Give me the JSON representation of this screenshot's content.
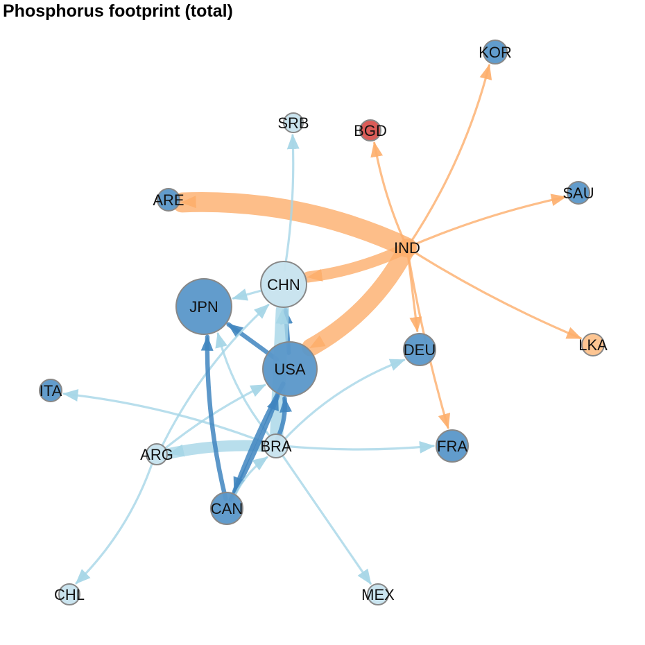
{
  "title": "Phosphorus footprint (total)",
  "colors": {
    "orange": "#fdae6b",
    "light_blue": "#a6d6e7",
    "mid_blue": "#3f85bf",
    "node_blue": "#5a97c9",
    "node_light": "#c7e3ee",
    "node_orange": "#fdc28c",
    "node_red": "#d9534f",
    "node_border": "#888888"
  },
  "nodes": [
    {
      "id": "KOR",
      "label": "KOR",
      "fill": "node_blue"
    },
    {
      "id": "SRB",
      "label": "SRB",
      "fill": "node_light"
    },
    {
      "id": "BGD",
      "label": "BGD",
      "fill": "node_red"
    },
    {
      "id": "SAU",
      "label": "SAU",
      "fill": "node_blue"
    },
    {
      "id": "ARE",
      "label": "ARE",
      "fill": "node_blue"
    },
    {
      "id": "IND",
      "label": "IND",
      "fill": "node_orange"
    },
    {
      "id": "CHN",
      "label": "CHN",
      "fill": "node_light"
    },
    {
      "id": "JPN",
      "label": "JPN",
      "fill": "node_blue"
    },
    {
      "id": "DEU",
      "label": "DEU",
      "fill": "node_blue"
    },
    {
      "id": "LKA",
      "label": "LKA",
      "fill": "node_orange"
    },
    {
      "id": "USA",
      "label": "USA",
      "fill": "node_blue"
    },
    {
      "id": "ITA",
      "label": "ITA",
      "fill": "node_blue"
    },
    {
      "id": "ARG",
      "label": "ARG",
      "fill": "node_light"
    },
    {
      "id": "BRA",
      "label": "BRA",
      "fill": "node_light"
    },
    {
      "id": "FRA",
      "label": "FRA",
      "fill": "node_blue"
    },
    {
      "id": "CAN",
      "label": "CAN",
      "fill": "node_blue"
    },
    {
      "id": "CHL",
      "label": "CHL",
      "fill": "node_light"
    },
    {
      "id": "MEX",
      "label": "MEX",
      "fill": "node_light"
    }
  ],
  "edges": [
    {
      "from": "IND",
      "to": "ARE",
      "weight": 9,
      "color": "orange"
    },
    {
      "from": "IND",
      "to": "USA",
      "weight": 8,
      "color": "orange"
    },
    {
      "from": "IND",
      "to": "CHN",
      "weight": 5,
      "color": "orange"
    },
    {
      "from": "IND",
      "to": "KOR",
      "weight": 1,
      "color": "orange"
    },
    {
      "from": "IND",
      "to": "BGD",
      "weight": 1,
      "color": "orange"
    },
    {
      "from": "IND",
      "to": "SAU",
      "weight": 1,
      "color": "orange"
    },
    {
      "from": "IND",
      "to": "LKA",
      "weight": 1,
      "color": "orange"
    },
    {
      "from": "IND",
      "to": "DEU",
      "weight": 1,
      "color": "orange"
    },
    {
      "from": "IND",
      "to": "FRA",
      "weight": 1,
      "color": "orange"
    },
    {
      "from": "CHN",
      "to": "SRB",
      "weight": 1,
      "color": "light_blue"
    },
    {
      "from": "CHN",
      "to": "JPN",
      "weight": 1,
      "color": "light_blue"
    },
    {
      "from": "USA",
      "to": "JPN",
      "weight": 2,
      "color": "mid_blue"
    },
    {
      "from": "USA",
      "to": "CHN",
      "weight": 2,
      "color": "mid_blue"
    },
    {
      "from": "BRA",
      "to": "CHN",
      "weight": 6,
      "color": "light_blue"
    },
    {
      "from": "BRA",
      "to": "ARG",
      "weight": 5,
      "color": "light_blue"
    },
    {
      "from": "BRA",
      "to": "ITA",
      "weight": 1,
      "color": "light_blue"
    },
    {
      "from": "BRA",
      "to": "FRA",
      "weight": 1,
      "color": "light_blue"
    },
    {
      "from": "BRA",
      "to": "DEU",
      "weight": 1,
      "color": "light_blue"
    },
    {
      "from": "BRA",
      "to": "MEX",
      "weight": 1,
      "color": "light_blue"
    },
    {
      "from": "BRA",
      "to": "JPN",
      "weight": 1,
      "color": "light_blue"
    },
    {
      "from": "BRA",
      "to": "USA",
      "weight": 2,
      "color": "mid_blue"
    },
    {
      "from": "ARG",
      "to": "USA",
      "weight": 1,
      "color": "light_blue"
    },
    {
      "from": "ARG",
      "to": "CHN",
      "weight": 1,
      "color": "light_blue"
    },
    {
      "from": "ARG",
      "to": "CHL",
      "weight": 1,
      "color": "light_blue"
    },
    {
      "from": "CAN",
      "to": "JPN",
      "weight": 2,
      "color": "mid_blue"
    },
    {
      "from": "CAN",
      "to": "USA",
      "weight": 2,
      "color": "mid_blue"
    },
    {
      "from": "USA",
      "to": "CAN",
      "weight": 2,
      "color": "mid_blue"
    },
    {
      "from": "CAN",
      "to": "BRA",
      "weight": 1,
      "color": "light_blue"
    }
  ]
}
